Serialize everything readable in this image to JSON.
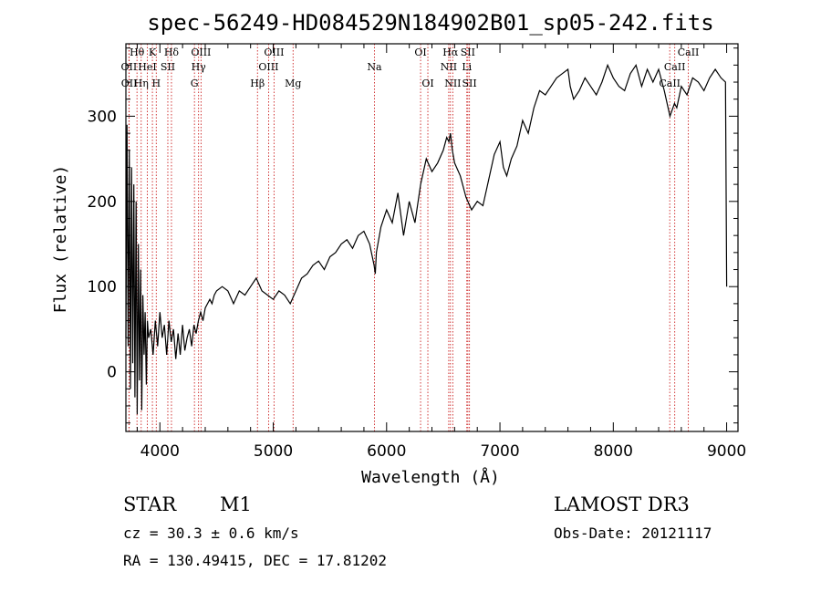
{
  "chart_data": {
    "type": "line",
    "title": "spec-56249-HD084529N184902B01_sp05-242.fits",
    "xlabel": "Wavelength (Å)",
    "ylabel": "Flux (relative)",
    "xlim": [
      3700,
      9100
    ],
    "ylim": [
      -70,
      385
    ],
    "xticks": [
      4000,
      5000,
      6000,
      7000,
      8000,
      9000
    ],
    "yticks": [
      0,
      100,
      200,
      300
    ],
    "grid": false,
    "series": [
      {
        "x": [
          3700,
          3710,
          3720,
          3730,
          3740,
          3750,
          3760,
          3770,
          3780,
          3790,
          3800,
          3810,
          3820,
          3830,
          3840,
          3850,
          3860,
          3870,
          3880,
          3890,
          3900,
          3920,
          3940,
          3960,
          3980,
          4000,
          4020,
          4040,
          4060,
          4080,
          4100,
          4120,
          4140,
          4160,
          4180,
          4200,
          4220,
          4240,
          4260,
          4280,
          4300,
          4320,
          4340,
          4360,
          4380,
          4400,
          4420,
          4440,
          4460,
          4480,
          4500,
          4550,
          4600,
          4650,
          4700,
          4750,
          4800,
          4850,
          4900,
          4950,
          5000,
          5050,
          5100,
          5150,
          5200,
          5250,
          5300,
          5350,
          5400,
          5450,
          5500,
          5550,
          5600,
          5650,
          5700,
          5750,
          5800,
          5850,
          5890,
          5900,
          5910,
          5950,
          6000,
          6050,
          6100,
          6150,
          6200,
          6250,
          6300,
          6350,
          6400,
          6450,
          6500,
          6530,
          6550,
          6563,
          6580,
          6600,
          6650,
          6700,
          6750,
          6800,
          6850,
          6900,
          6950,
          7000,
          7030,
          7060,
          7100,
          7150,
          7200,
          7250,
          7300,
          7350,
          7400,
          7450,
          7500,
          7550,
          7600,
          7620,
          7650,
          7700,
          7750,
          7800,
          7850,
          7900,
          7950,
          8000,
          8050,
          8100,
          8150,
          8200,
          8250,
          8300,
          8350,
          8400,
          8450,
          8500,
          8540,
          8560,
          8600,
          8650,
          8700,
          8750,
          8800,
          8850,
          8900,
          8950,
          8990,
          9000
        ],
        "y": [
          40,
          290,
          30,
          260,
          -20,
          240,
          10,
          220,
          -30,
          200,
          -50,
          150,
          -10,
          120,
          -45,
          90,
          20,
          70,
          -15,
          60,
          40,
          50,
          20,
          60,
          30,
          70,
          40,
          55,
          20,
          60,
          35,
          50,
          15,
          45,
          20,
          55,
          25,
          40,
          50,
          30,
          55,
          45,
          60,
          70,
          60,
          75,
          80,
          85,
          80,
          90,
          95,
          100,
          95,
          80,
          95,
          90,
          100,
          110,
          95,
          90,
          85,
          95,
          90,
          80,
          95,
          110,
          115,
          125,
          130,
          120,
          135,
          140,
          150,
          155,
          145,
          160,
          165,
          150,
          125,
          115,
          140,
          170,
          190,
          175,
          210,
          160,
          200,
          175,
          220,
          250,
          235,
          245,
          260,
          275,
          270,
          280,
          260,
          245,
          230,
          205,
          190,
          200,
          195,
          225,
          255,
          270,
          240,
          230,
          250,
          265,
          295,
          280,
          310,
          330,
          325,
          335,
          345,
          350,
          355,
          335,
          320,
          330,
          345,
          335,
          325,
          340,
          360,
          345,
          335,
          330,
          350,
          360,
          335,
          355,
          340,
          355,
          330,
          300,
          315,
          310,
          335,
          325,
          345,
          340,
          330,
          345,
          355,
          345,
          340,
          100
        ]
      }
    ],
    "line_marks": [
      {
        "name": "Hθ",
        "x": 3798,
        "row": 1
      },
      {
        "name": "OII",
        "x": 3727,
        "row": 2
      },
      {
        "name": "OII",
        "x": 3729,
        "row": 3
      },
      {
        "name": "K",
        "x": 3934,
        "row": 1
      },
      {
        "name": "HeI",
        "x": 3889,
        "row": 2
      },
      {
        "name": "Hη",
        "x": 3835,
        "row": 3
      },
      {
        "name": "H",
        "x": 3968,
        "row": 3
      },
      {
        "name": "Hδ",
        "x": 4102,
        "row": 1
      },
      {
        "name": "SII",
        "x": 4070,
        "row": 2
      },
      {
        "name": "OIII",
        "x": 4363,
        "row": 1
      },
      {
        "name": "Hγ",
        "x": 4341,
        "row": 2
      },
      {
        "name": "G",
        "x": 4305,
        "row": 3
      },
      {
        "name": "Hβ",
        "x": 4861,
        "row": 3
      },
      {
        "name": "OIII",
        "x": 5007,
        "row": 1
      },
      {
        "name": "OIII",
        "x": 4959,
        "row": 2
      },
      {
        "name": "Mg",
        "x": 5175,
        "row": 3
      },
      {
        "name": "Na",
        "x": 5893,
        "row": 2
      },
      {
        "name": "OI",
        "x": 6300,
        "row": 1
      },
      {
        "name": "OI",
        "x": 6364,
        "row": 3
      },
      {
        "name": "Hα",
        "x": 6563,
        "row": 1
      },
      {
        "name": "SII",
        "x": 6717,
        "row": 1
      },
      {
        "name": "NII",
        "x": 6548,
        "row": 2
      },
      {
        "name": "Li",
        "x": 6708,
        "row": 2
      },
      {
        "name": "NII",
        "x": 6584,
        "row": 3
      },
      {
        "name": "SII",
        "x": 6731,
        "row": 3
      },
      {
        "name": "CaII",
        "x": 8662,
        "row": 1
      },
      {
        "name": "CaII",
        "x": 8542,
        "row": 2
      },
      {
        "name": "CaII",
        "x": 8498,
        "row": 3
      }
    ]
  },
  "info": {
    "object_class": "STAR",
    "subclass": "M1",
    "survey": "LAMOST DR3",
    "cz": "cz = 30.3 ± 0.6 km/s",
    "obs_date": "Obs-Date: 20121117",
    "radec": "RA = 130.49415, DEC =  17.81202"
  },
  "colors": {
    "line_marker": "#cc2222",
    "spectrum": "#000000",
    "background": "#ffffff"
  }
}
